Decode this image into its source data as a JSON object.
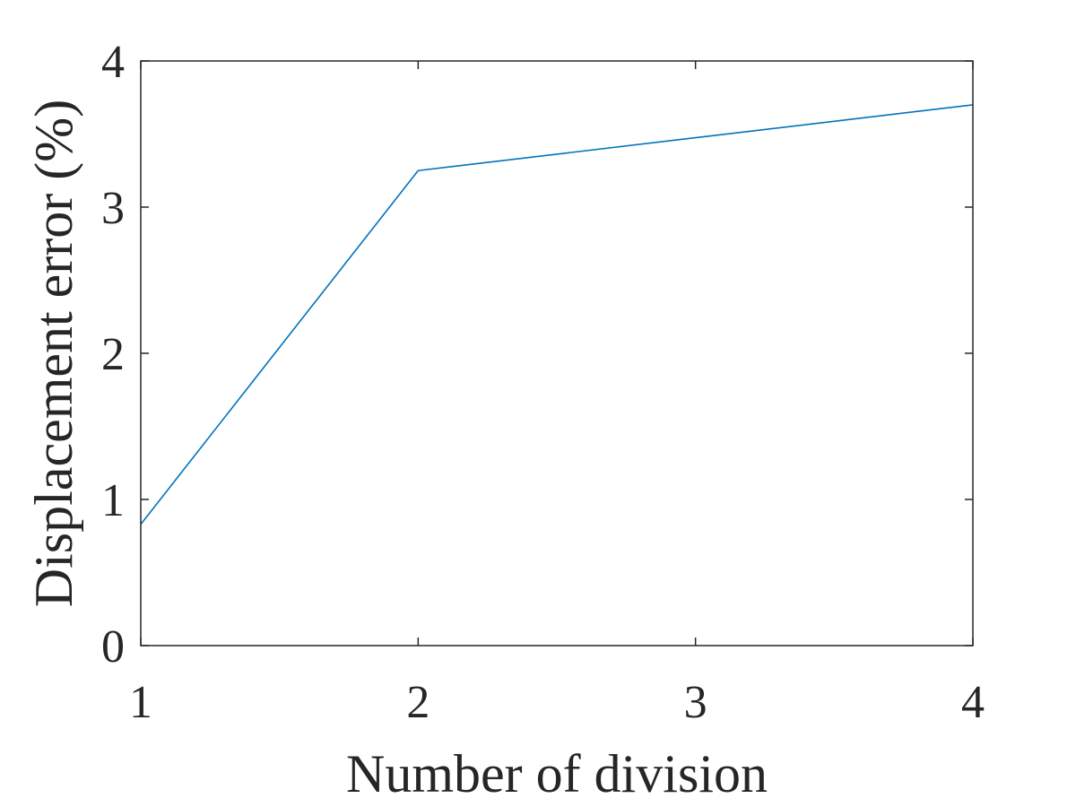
{
  "chart_data": {
    "type": "line",
    "title": "",
    "xlabel": "Number of division",
    "ylabel": "Displacement error (%)",
    "xlim": [
      1,
      4
    ],
    "ylim": [
      0,
      4
    ],
    "xticks": [
      "1",
      "2",
      "3",
      "4"
    ],
    "yticks": [
      "0",
      "1",
      "2",
      "3",
      "4"
    ],
    "grid": false,
    "legend": "none",
    "series": [
      {
        "color": "#0072bd",
        "x": [
          1,
          2,
          4
        ],
        "y": [
          0.83,
          3.25,
          3.7
        ]
      }
    ]
  }
}
